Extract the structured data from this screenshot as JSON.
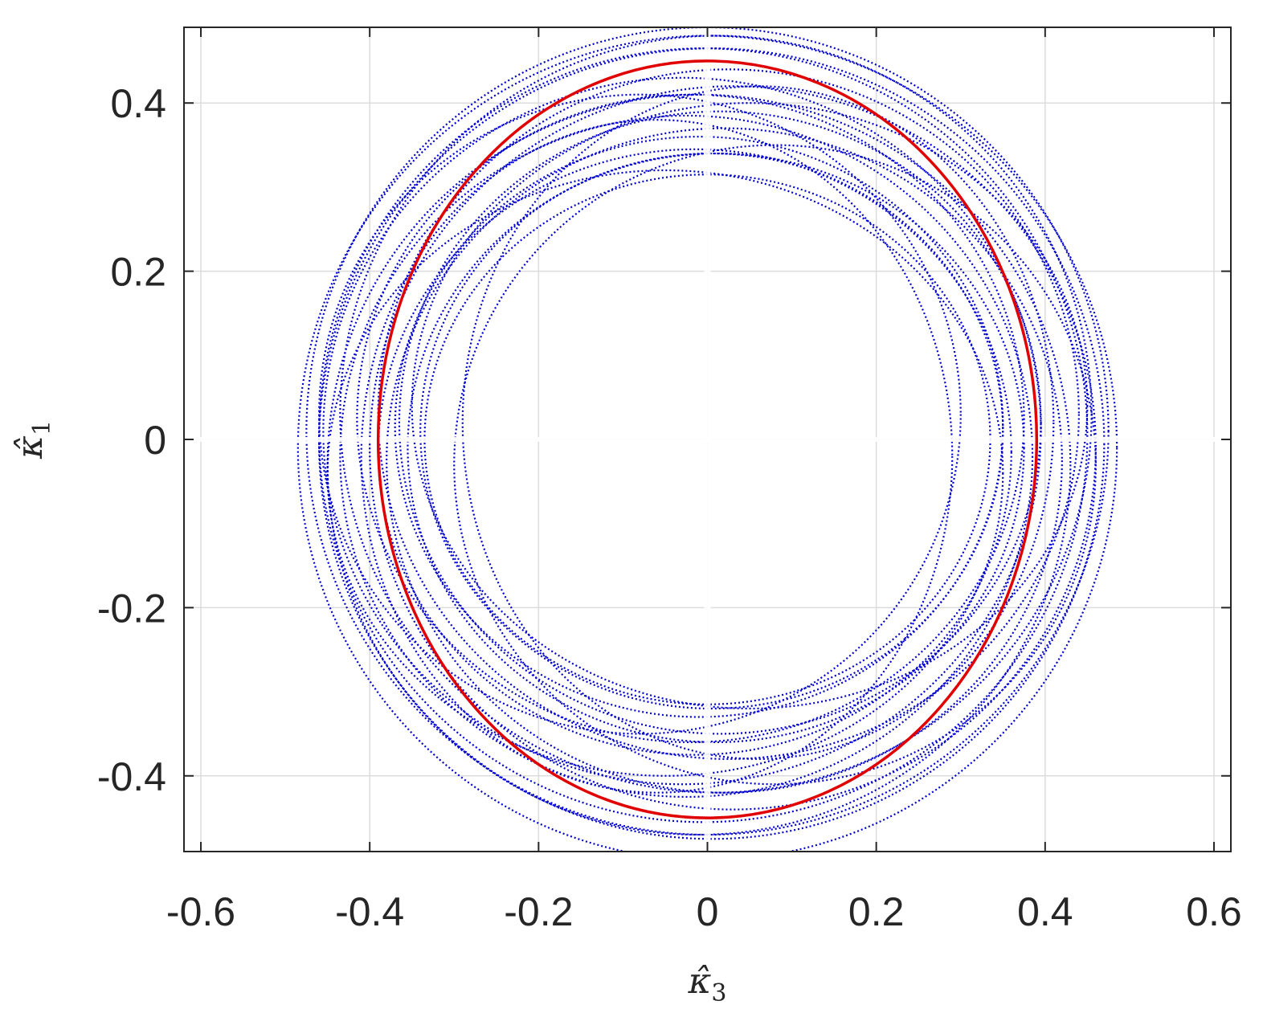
{
  "chart_data": {
    "type": "scatter",
    "title": "",
    "xlabel": "κ̂3",
    "ylabel": "κ̂1",
    "xlabel_parts": {
      "base": "κ̂",
      "sub": "3"
    },
    "ylabel_parts": {
      "base": "κ̂",
      "sub": "1"
    },
    "xlim": [
      -0.62,
      0.62
    ],
    "ylim": [
      -0.49,
      0.49
    ],
    "xticks": [
      -0.6,
      -0.4,
      -0.2,
      0,
      0.2,
      0.4,
      0.6
    ],
    "xtick_labels": [
      "-0.6",
      "-0.4",
      "-0.2",
      "0",
      "0.2",
      "0.4",
      "0.6"
    ],
    "yticks": [
      -0.4,
      -0.2,
      0,
      0.2,
      0.4
    ],
    "ytick_labels": [
      "-0.4",
      "-0.2",
      "0",
      "0.2",
      "0.4"
    ],
    "grid": true,
    "colors": {
      "trajectories": "#0000cc",
      "reference": "#e00000",
      "grid": "#dcdcdc",
      "axis": "#262626"
    },
    "series": [
      {
        "color": "#0000cc",
        "style": "dotted-ellipses",
        "ellipses": [
          {
            "cx": 0.0,
            "cy": 0.0,
            "rx": 0.335,
            "ry": 0.315
          },
          {
            "cx": 0.005,
            "cy": 0.01,
            "rx": 0.345,
            "ry": 0.33
          },
          {
            "cx": -0.01,
            "cy": 0.015,
            "rx": 0.36,
            "ry": 0.345
          },
          {
            "cx": 0.01,
            "cy": -0.01,
            "rx": 0.365,
            "ry": 0.35
          },
          {
            "cx": -0.015,
            "cy": -0.015,
            "rx": 0.375,
            "ry": 0.36
          },
          {
            "cx": 0.015,
            "cy": 0.02,
            "rx": 0.38,
            "ry": 0.37
          },
          {
            "cx": -0.02,
            "cy": 0.025,
            "rx": 0.395,
            "ry": 0.385
          },
          {
            "cx": 0.02,
            "cy": -0.025,
            "rx": 0.4,
            "ry": 0.395
          },
          {
            "cx": -0.025,
            "cy": -0.02,
            "rx": 0.41,
            "ry": 0.405
          },
          {
            "cx": 0.025,
            "cy": 0.03,
            "rx": 0.415,
            "ry": 0.41
          },
          {
            "cx": -0.03,
            "cy": 0.01,
            "rx": 0.425,
            "ry": 0.42
          },
          {
            "cx": 0.03,
            "cy": -0.01,
            "rx": 0.43,
            "ry": 0.43
          },
          {
            "cx": -0.01,
            "cy": -0.03,
            "rx": 0.44,
            "ry": 0.44
          },
          {
            "cx": 0.01,
            "cy": 0.03,
            "rx": 0.445,
            "ry": 0.45
          },
          {
            "cx": -0.005,
            "cy": 0.005,
            "rx": 0.455,
            "ry": 0.46
          },
          {
            "cx": 0.005,
            "cy": -0.005,
            "rx": 0.465,
            "ry": 0.47
          },
          {
            "cx": 0.0,
            "cy": 0.01,
            "rx": 0.475,
            "ry": 0.48
          },
          {
            "cx": 0.0,
            "cy": -0.01,
            "rx": 0.485,
            "ry": 0.49
          },
          {
            "cx": 0.06,
            "cy": 0.02,
            "rx": 0.35,
            "ry": 0.4
          },
          {
            "cx": -0.06,
            "cy": -0.02,
            "rx": 0.35,
            "ry": 0.4
          },
          {
            "cx": 0.08,
            "cy": -0.03,
            "rx": 0.38,
            "ry": 0.38
          },
          {
            "cx": -0.08,
            "cy": 0.03,
            "rx": 0.38,
            "ry": 0.38
          },
          {
            "cx": 0.05,
            "cy": 0.04,
            "rx": 0.4,
            "ry": 0.36
          },
          {
            "cx": -0.05,
            "cy": -0.04,
            "rx": 0.4,
            "ry": 0.36
          }
        ]
      },
      {
        "color": "#e00000",
        "style": "solid-ellipse",
        "ellipse": {
          "cx": 0.0,
          "cy": 0.0,
          "rx": 0.39,
          "ry": 0.45
        }
      }
    ]
  }
}
